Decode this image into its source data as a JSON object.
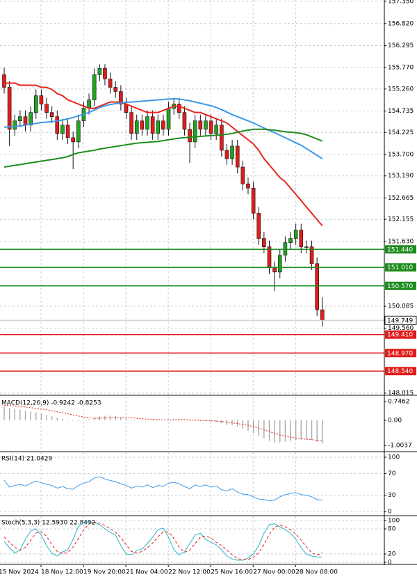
{
  "chart_data": [
    {
      "type": "candlestick",
      "categories": [
        "15 Nov 2024",
        null,
        null,
        null,
        null,
        null,
        null,
        null,
        "18 Nov 12:00",
        null,
        null,
        null,
        null,
        null,
        null,
        null,
        "19 Nov 20:00",
        null,
        null,
        null,
        null,
        null,
        null,
        null,
        "21 Nov 04:00",
        null,
        null,
        null,
        null,
        null,
        null,
        null,
        "22 Nov 12:00",
        null,
        null,
        null,
        null,
        null,
        null,
        null,
        "25 Nov 16:00",
        null,
        null,
        null,
        null,
        null,
        null,
        null,
        "27 Nov 00:00",
        null,
        null,
        null,
        null,
        null,
        null,
        null,
        "28 Nov 08:00",
        null,
        null,
        null,
        null
      ],
      "open": [
        155.6,
        155.3,
        154.3,
        154.5,
        154.6,
        154.4,
        154.7,
        155.1,
        154.9,
        154.7,
        154.6,
        154.2,
        154.4,
        154.1,
        154.0,
        154.5,
        154.8,
        155.0,
        155.6,
        155.75,
        155.5,
        155.3,
        155.2,
        154.9,
        154.7,
        154.2,
        154.5,
        154.3,
        154.6,
        154.2,
        154.5,
        154.3,
        154.8,
        154.9,
        154.7,
        154.3,
        154.0,
        154.5,
        154.3,
        154.5,
        154.2,
        154.4,
        153.8,
        153.6,
        153.9,
        153.4,
        153.0,
        152.9,
        152.3,
        151.7,
        151.5,
        151.0,
        150.9,
        151.3,
        151.6,
        151.7,
        151.9,
        151.5,
        151.5,
        151.1,
        150.0
      ],
      "high": [
        155.77,
        155.45,
        154.65,
        154.75,
        154.75,
        154.85,
        155.25,
        155.25,
        155.05,
        154.85,
        154.75,
        154.55,
        154.55,
        154.25,
        154.65,
        154.95,
        155.15,
        155.75,
        155.85,
        155.85,
        155.65,
        155.45,
        155.35,
        155.05,
        154.85,
        154.65,
        154.65,
        154.75,
        154.75,
        154.65,
        154.65,
        154.95,
        155.05,
        155.05,
        154.85,
        154.45,
        154.65,
        154.65,
        154.65,
        154.65,
        154.55,
        154.55,
        153.95,
        154.05,
        154.05,
        153.55,
        153.15,
        153.05,
        152.45,
        151.85,
        151.65,
        151.15,
        151.45,
        151.75,
        151.85,
        152.05,
        152.05,
        151.65,
        151.65,
        151.25,
        150.3
      ],
      "low": [
        155.15,
        153.9,
        154.15,
        154.35,
        154.25,
        154.25,
        154.55,
        154.75,
        154.55,
        154.45,
        154.05,
        154.05,
        153.95,
        153.35,
        153.85,
        154.35,
        154.65,
        154.85,
        155.45,
        155.35,
        155.15,
        155.05,
        154.75,
        154.55,
        154.05,
        154.05,
        154.15,
        154.15,
        154.05,
        154.05,
        154.15,
        154.15,
        154.65,
        154.55,
        154.15,
        153.5,
        153.85,
        154.15,
        154.15,
        154.05,
        154.05,
        153.65,
        153.45,
        153.45,
        153.25,
        152.85,
        152.75,
        152.15,
        151.55,
        151.35,
        150.85,
        150.45,
        150.75,
        151.15,
        151.45,
        151.55,
        151.35,
        151.35,
        150.95,
        149.85,
        149.6
      ],
      "close": [
        155.3,
        154.3,
        154.5,
        154.6,
        154.4,
        154.7,
        155.1,
        154.9,
        154.7,
        154.6,
        154.2,
        154.4,
        154.1,
        154.0,
        154.5,
        154.8,
        155.0,
        155.6,
        155.75,
        155.5,
        155.3,
        155.2,
        154.9,
        154.7,
        154.2,
        154.5,
        154.3,
        154.6,
        154.2,
        154.5,
        154.3,
        154.8,
        154.9,
        154.7,
        154.3,
        154.0,
        154.5,
        154.3,
        154.5,
        154.2,
        154.4,
        153.8,
        153.6,
        153.9,
        153.4,
        153.0,
        152.9,
        152.3,
        151.7,
        151.5,
        151.0,
        150.9,
        151.3,
        151.6,
        151.7,
        151.9,
        151.5,
        151.5,
        151.1,
        150.0,
        149.75
      ],
      "up_color": "#22a322",
      "down_color": "#e01c1c",
      "series": [
        {
          "color": "#e8261e",
          "values": [
            155.4,
            155.4,
            155.4,
            155.35,
            155.35,
            155.35,
            155.35,
            155.3,
            155.3,
            155.25,
            155.15,
            155.1,
            155.0,
            154.95,
            154.9,
            154.85,
            154.8,
            154.8,
            154.85,
            154.9,
            154.95,
            154.95,
            154.95,
            154.9,
            154.85,
            154.8,
            154.75,
            154.7,
            154.7,
            154.7,
            154.75,
            154.8,
            154.85,
            154.85,
            154.8,
            154.75,
            154.7,
            154.7,
            154.65,
            154.6,
            154.55,
            154.5,
            154.45,
            154.35,
            154.25,
            154.15,
            154.05,
            153.95,
            153.8,
            153.6,
            153.45,
            153.3,
            153.15,
            153.05,
            152.9,
            152.75,
            152.6,
            152.45,
            152.3,
            152.15,
            152.0
          ]
        },
        {
          "color": "#3d98e6",
          "values": [
            154.35,
            154.36,
            154.37,
            154.38,
            154.4,
            154.42,
            154.44,
            154.46,
            154.47,
            154.48,
            154.5,
            154.52,
            154.55,
            154.58,
            154.62,
            154.66,
            154.7,
            154.76,
            154.82,
            154.86,
            154.89,
            154.91,
            154.93,
            154.94,
            154.95,
            154.96,
            154.97,
            154.98,
            154.99,
            155.0,
            155.01,
            155.02,
            155.03,
            155.02,
            155.0,
            154.98,
            154.95,
            154.92,
            154.89,
            154.86,
            154.82,
            154.77,
            154.71,
            154.65,
            154.6,
            154.55,
            154.5,
            154.45,
            154.39,
            154.33,
            154.27,
            154.22,
            154.16,
            154.1,
            154.04,
            153.98,
            153.92,
            153.84,
            153.76,
            153.68,
            153.6
          ]
        },
        {
          "color": "#1e8c1e",
          "values": [
            153.4,
            153.42,
            153.44,
            153.46,
            153.48,
            153.5,
            153.52,
            153.54,
            153.56,
            153.58,
            153.6,
            153.62,
            153.65,
            153.7,
            153.74,
            153.76,
            153.78,
            153.8,
            153.83,
            153.85,
            153.87,
            153.89,
            153.91,
            153.93,
            153.95,
            153.97,
            153.98,
            153.99,
            154.0,
            154.01,
            154.03,
            154.05,
            154.07,
            154.09,
            154.1,
            154.11,
            154.12,
            154.13,
            154.14,
            154.15,
            154.16,
            154.17,
            154.18,
            154.2,
            154.23,
            154.26,
            154.28,
            154.3,
            154.3,
            154.3,
            154.29,
            154.28,
            154.26,
            154.24,
            154.23,
            154.22,
            154.2,
            154.17,
            154.12,
            154.07,
            154.02
          ]
        }
      ],
      "ylim": [
        147.98,
        157.38
      ],
      "yticks": [
        {
          "value": 157.35,
          "label": "157.350"
        },
        {
          "value": 156.82,
          "label": "156.820"
        },
        156.295,
        {
          "value": 155.77,
          "label": "155.770"
        },
        {
          "value": 155.26,
          "label": "155.260"
        },
        154.735,
        154.225,
        {
          "value": 153.7,
          "label": "153.700"
        },
        {
          "value": 153.19,
          "label": "153.190"
        },
        152.665,
        152.155,
        {
          "value": 151.63,
          "label": "151.630"
        },
        150.085,
        {
          "value": 149.56,
          "label": "149.560"
        },
        148.015
      ],
      "grid": true,
      "levels": [
        {
          "value": 151.44,
          "label": "151.440",
          "color": "#1e8c1e"
        },
        {
          "value": 151.01,
          "label": "151.010",
          "color": "#1e8c1e"
        },
        {
          "value": 150.57,
          "label": "150.570",
          "color": "#1e8c1e"
        },
        {
          "value": 149.41,
          "label": "149.410",
          "color": "#e01c1c"
        },
        {
          "value": 148.97,
          "label": "148.970",
          "color": "#e01c1c"
        },
        {
          "value": 148.54,
          "label": "148.540",
          "color": "#e01c1c"
        }
      ],
      "current": {
        "value": 149.749,
        "label": "149.749",
        "color": "#b8c6d4"
      }
    },
    {
      "type": "macd",
      "title": "MACD(12,26,9) -0.9242 -0.8253",
      "series": [
        {
          "color": "#a8a8a8",
          "style": "histogram",
          "values": [
            0.55,
            0.5,
            0.45,
            0.42,
            0.38,
            0.35,
            0.32,
            0.28,
            0.22,
            0.16,
            0.1,
            0.06,
            0.02,
            -0.02,
            -0.03,
            0.0,
            0.04,
            0.1,
            0.15,
            0.18,
            0.18,
            0.16,
            0.12,
            0.08,
            0.03,
            0.01,
            -0.01,
            0.0,
            -0.02,
            -0.01,
            0.0,
            0.03,
            0.05,
            0.05,
            0.02,
            -0.03,
            -0.03,
            -0.04,
            -0.03,
            -0.05,
            -0.06,
            -0.12,
            -0.18,
            -0.2,
            -0.25,
            -0.33,
            -0.4,
            -0.5,
            -0.62,
            -0.72,
            -0.82,
            -0.88,
            -0.88,
            -0.85,
            -0.82,
            -0.78,
            -0.77,
            -0.76,
            -0.78,
            -0.86,
            -0.9242
          ]
        },
        {
          "color": "#e01c1c",
          "style": "dotted",
          "values": [
            0.6,
            0.59,
            0.57,
            0.55,
            0.53,
            0.5,
            0.48,
            0.45,
            0.42,
            0.38,
            0.34,
            0.3,
            0.26,
            0.21,
            0.17,
            0.13,
            0.1,
            0.08,
            0.08,
            0.09,
            0.1,
            0.11,
            0.11,
            0.11,
            0.1,
            0.08,
            0.06,
            0.05,
            0.04,
            0.03,
            0.02,
            0.02,
            0.02,
            0.03,
            0.03,
            0.02,
            0.01,
            0.0,
            -0.01,
            -0.02,
            -0.03,
            -0.05,
            -0.07,
            -0.1,
            -0.13,
            -0.16,
            -0.2,
            -0.25,
            -0.31,
            -0.38,
            -0.45,
            -0.52,
            -0.58,
            -0.63,
            -0.67,
            -0.7,
            -0.73,
            -0.75,
            -0.77,
            -0.8,
            -0.8253
          ]
        }
      ],
      "ylim": [
        -1.22,
        0.94
      ],
      "yticks": [
        0.7462,
        {
          "value": 0,
          "label": "0.00"
        },
        -1.0037
      ],
      "grid": false
    },
    {
      "type": "rsi",
      "title": "RSI(14) 21.0429",
      "series": [
        {
          "color": "#3d98e6",
          "style": "solid",
          "values": [
            58,
            45,
            48,
            50,
            47,
            52,
            56,
            53,
            50,
            48,
            43,
            46,
            42,
            41,
            48,
            52,
            55,
            62,
            64,
            60,
            57,
            55,
            51,
            48,
            43,
            47,
            45,
            49,
            44,
            48,
            46,
            52,
            54,
            51,
            46,
            42,
            49,
            46,
            49,
            45,
            47,
            40,
            38,
            42,
            36,
            32,
            31,
            27,
            23,
            22,
            20,
            21,
            27,
            31,
            33,
            35,
            31,
            30,
            27,
            22,
            21.0429
          ]
        }
      ],
      "ylim": [
        -6.4,
        109
      ],
      "yticks": [
        100,
        70,
        30,
        0
      ],
      "grid": true
    },
    {
      "type": "stoch",
      "title": "Stoch(5,3,3) 12.5930 22.8492",
      "series": [
        {
          "color": "#27b5c9",
          "style": "solid",
          "values": [
            50,
            35,
            22,
            30,
            55,
            75,
            80,
            65,
            40,
            22,
            15,
            25,
            30,
            55,
            85,
            95,
            97,
            95,
            90,
            80,
            72,
            65,
            40,
            20,
            18,
            28,
            32,
            45,
            60,
            78,
            82,
            60,
            30,
            18,
            25,
            45,
            65,
            70,
            55,
            48,
            42,
            30,
            15,
            8,
            5,
            5,
            10,
            20,
            40,
            70,
            90,
            92,
            85,
            78,
            70,
            55,
            35,
            20,
            15,
            13,
            12.593
          ]
        },
        {
          "color": "#e01c1c",
          "style": "dashed",
          "values": [
            60,
            48,
            36,
            29,
            36,
            53,
            70,
            73,
            62,
            42,
            26,
            21,
            23,
            37,
            57,
            78,
            92,
            96,
            94,
            88,
            81,
            72,
            59,
            42,
            26,
            22,
            26,
            35,
            46,
            61,
            73,
            73,
            57,
            36,
            24,
            29,
            45,
            60,
            63,
            58,
            48,
            40,
            29,
            18,
            9,
            6,
            7,
            12,
            23,
            43,
            67,
            84,
            89,
            85,
            78,
            68,
            53,
            37,
            23,
            17,
            22.8492
          ]
        }
      ],
      "ylim": [
        -3.3,
        110
      ],
      "yticks": [
        100,
        80,
        20,
        0
      ],
      "grid": true
    }
  ]
}
